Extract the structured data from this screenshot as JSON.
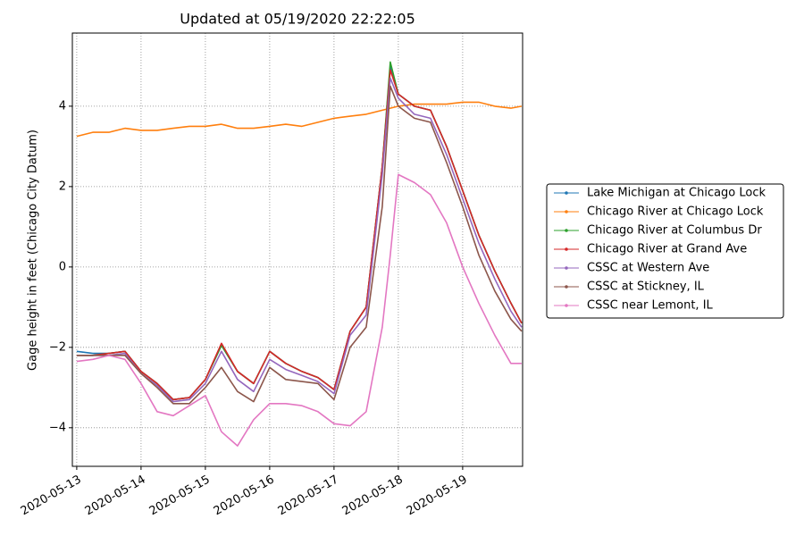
{
  "chart_data": {
    "type": "line",
    "title": "Updated at 05/19/2020 22:22:05",
    "ylabel": "Gage height in feet (Chicago City Datum)",
    "x": [
      "2020-05-13T00:00",
      "2020-05-13T06:00",
      "2020-05-13T12:00",
      "2020-05-13T18:00",
      "2020-05-14T00:00",
      "2020-05-14T06:00",
      "2020-05-14T12:00",
      "2020-05-14T18:00",
      "2020-05-15T00:00",
      "2020-05-15T06:00",
      "2020-05-15T12:00",
      "2020-05-15T18:00",
      "2020-05-16T00:00",
      "2020-05-16T06:00",
      "2020-05-16T12:00",
      "2020-05-16T18:00",
      "2020-05-17T00:00",
      "2020-05-17T06:00",
      "2020-05-17T12:00",
      "2020-05-17T18:00",
      "2020-05-17T21:00",
      "2020-05-18T00:00",
      "2020-05-18T06:00",
      "2020-05-18T12:00",
      "2020-05-18T18:00",
      "2020-05-19T00:00",
      "2020-05-19T06:00",
      "2020-05-19T12:00",
      "2020-05-19T18:00",
      "2020-05-19T22:00"
    ],
    "series": [
      {
        "name": "Lake Michigan at Chicago Lock",
        "color": "#1f77b4",
        "values": [
          -2.1,
          -2.15,
          -2.15,
          -2.1,
          -2.6,
          -2.9,
          -3.3,
          -3.25,
          -2.8,
          -1.95,
          -2.6,
          -2.9,
          -2.1,
          -2.4,
          -2.6,
          -2.75,
          -3.05,
          -1.6,
          -1.0,
          2.5,
          5.0,
          4.3,
          4.0,
          3.9,
          3.0,
          1.9,
          0.8,
          -0.1,
          -0.9,
          -1.4
        ]
      },
      {
        "name": "Chicago River at Chicago Lock",
        "color": "#ff7f0e",
        "values": [
          3.25,
          3.35,
          3.35,
          3.45,
          3.4,
          3.4,
          3.45,
          3.5,
          3.5,
          3.55,
          3.45,
          3.45,
          3.5,
          3.55,
          3.5,
          3.6,
          3.7,
          3.75,
          3.8,
          3.9,
          3.95,
          4.0,
          4.05,
          4.05,
          4.05,
          4.1,
          4.1,
          4.0,
          3.95,
          4.0
        ]
      },
      {
        "name": "Chicago River at Columbus Dr",
        "color": "#2ca02c",
        "values": [
          -2.2,
          -2.2,
          -2.15,
          -2.1,
          -2.6,
          -2.9,
          -3.3,
          -3.25,
          -2.8,
          -1.95,
          -2.6,
          -2.9,
          -2.1,
          -2.4,
          -2.6,
          -2.75,
          -3.05,
          -1.6,
          -1.0,
          2.5,
          5.1,
          4.3,
          4.0,
          3.9,
          3.0,
          1.9,
          0.8,
          -0.1,
          -0.9,
          -1.4
        ]
      },
      {
        "name": "Chicago River at Grand Ave",
        "color": "#d62728",
        "values": [
          -2.2,
          -2.2,
          -2.15,
          -2.1,
          -2.6,
          -2.9,
          -3.3,
          -3.25,
          -2.8,
          -1.9,
          -2.6,
          -2.9,
          -2.1,
          -2.4,
          -2.6,
          -2.75,
          -3.05,
          -1.6,
          -1.0,
          2.5,
          4.9,
          4.3,
          4.0,
          3.9,
          3.0,
          1.9,
          0.8,
          -0.1,
          -0.9,
          -1.4
        ]
      },
      {
        "name": "CSSC at Western Ave",
        "color": "#9467bd",
        "values": [
          -2.2,
          -2.2,
          -2.2,
          -2.15,
          -2.65,
          -2.95,
          -3.35,
          -3.3,
          -2.9,
          -2.1,
          -2.8,
          -3.1,
          -2.3,
          -2.55,
          -2.7,
          -2.85,
          -3.15,
          -1.7,
          -1.2,
          2.3,
          4.7,
          4.2,
          3.8,
          3.7,
          2.8,
          1.7,
          0.6,
          -0.3,
          -1.1,
          -1.5
        ]
      },
      {
        "name": "CSSC at Stickney, IL",
        "color": "#8c564b",
        "values": [
          -2.2,
          -2.2,
          -2.2,
          -2.2,
          -2.65,
          -3.0,
          -3.4,
          -3.4,
          -3.0,
          -2.5,
          -3.1,
          -3.35,
          -2.5,
          -2.8,
          -2.85,
          -2.9,
          -3.3,
          -2.0,
          -1.5,
          1.5,
          4.5,
          4.0,
          3.7,
          3.6,
          2.6,
          1.5,
          0.3,
          -0.6,
          -1.3,
          -1.6
        ]
      },
      {
        "name": "CSSC near Lemont, IL",
        "color": "#e377c2",
        "values": [
          -2.35,
          -2.3,
          -2.2,
          -2.3,
          -2.9,
          -3.6,
          -3.7,
          -3.45,
          -3.2,
          -4.1,
          -4.45,
          -3.8,
          -3.4,
          -3.4,
          -3.45,
          -3.6,
          -3.9,
          -3.95,
          -3.6,
          -1.5,
          0.3,
          2.3,
          2.1,
          1.8,
          1.1,
          0.0,
          -0.9,
          -1.7,
          -2.4,
          -2.4
        ]
      }
    ],
    "xlim": [
      "2020-05-12T22:22",
      "2020-05-19T22:22"
    ],
    "xticks": [
      "2020-05-13",
      "2020-05-14",
      "2020-05-15",
      "2020-05-16",
      "2020-05-17",
      "2020-05-18",
      "2020-05-19"
    ],
    "ylim": [
      -4.96,
      5.82
    ],
    "yticks": [
      {
        "value": -4,
        "label": "−4"
      },
      {
        "value": -2,
        "label": "−2"
      },
      0,
      2,
      4
    ],
    "grid": true,
    "legend": "right"
  }
}
